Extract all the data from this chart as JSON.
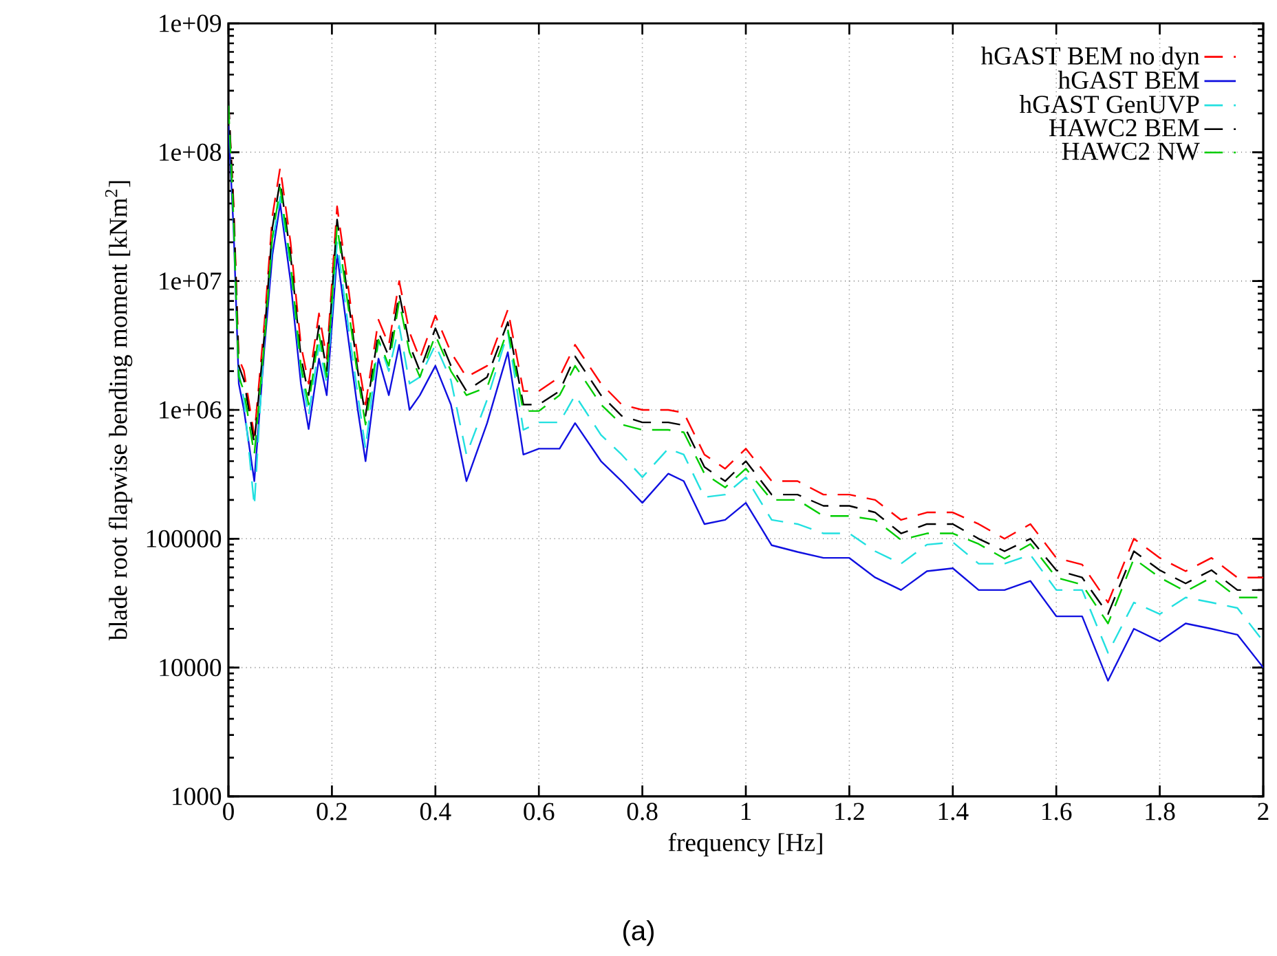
{
  "chart_data": {
    "type": "line",
    "xlabel": "frequency [Hz]",
    "ylabel": "blade root flapwise bending moment [kNm$^{2}$]",
    "annotations": [
      "(a)"
    ],
    "log": "y",
    "grid": true,
    "legend": "top right",
    "marker": "none",
    "xlim": [
      0,
      2
    ],
    "ylim": [
      1000,
      1000000000
    ],
    "xticks": [
      0,
      0.2,
      0.4,
      0.6,
      0.8,
      1,
      1.2,
      1.4,
      1.6,
      1.8,
      2
    ],
    "yticks": [
      1000,
      10000,
      100000,
      {
        "value": 1000000,
        "label": "1e+06"
      },
      {
        "value": 10000000,
        "label": "1e+07"
      },
      {
        "value": 100000000,
        "label": "1e+08"
      },
      {
        "value": 1000000000,
        "label": "1e+09"
      }
    ],
    "x": [
      0,
      0.01,
      0.02,
      0.03,
      0.05,
      0.07,
      0.085,
      0.1,
      0.12,
      0.14,
      0.155,
      0.175,
      0.19,
      0.21,
      0.23,
      0.25,
      0.265,
      0.29,
      0.31,
      0.33,
      0.35,
      0.37,
      0.4,
      0.43,
      0.46,
      0.5,
      0.54,
      0.57,
      0.6,
      0.64,
      0.67,
      0.72,
      0.76,
      0.8,
      0.85,
      0.88,
      0.92,
      0.96,
      1.0,
      1.05,
      1.1,
      1.15,
      1.2,
      1.25,
      1.3,
      1.35,
      1.4,
      1.45,
      1.5,
      1.55,
      1.6,
      1.65,
      1.7,
      1.75,
      1.8,
      1.85,
      1.9,
      1.95,
      2.0
    ],
    "series": [
      {
        "name": "hGAST BEM no dyn",
        "color": "#ff0000",
        "line_style": "dashed",
        "values": [
          250000000.0,
          40000000.0,
          2500000.0,
          2000000.0,
          630000.0,
          5000000.0,
          32000000.0,
          76000000.0,
          20000000.0,
          3200000.0,
          1600000.0,
          5600000.0,
          2500000.0,
          38000000.0,
          10000000.0,
          2500000.0,
          1100000.0,
          5000000.0,
          3200000.0,
          10000000.0,
          4000000.0,
          2500000.0,
          5400000.0,
          2800000.0,
          1800000.0,
          2200000.0,
          6000000.0,
          1400000.0,
          1400000.0,
          1800000.0,
          3200000.0,
          1600000.0,
          1100000.0,
          1000000.0,
          1000000.0,
          950000.0,
          450000.0,
          350000.0,
          500000.0,
          280000.0,
          280000.0,
          220000.0,
          220000.0,
          200000.0,
          140000.0,
          160000.0,
          160000.0,
          130000.0,
          100000.0,
          130000.0,
          71000.0,
          63000.0,
          32000.0,
          100000.0,
          71000.0,
          56000.0,
          71000.0,
          50000.0,
          50000.0
        ]
      },
      {
        "name": "hGAST BEM",
        "color": "#1010e0",
        "line_style": "solid",
        "values": [
          160000000.0,
          25000000.0,
          1600000.0,
          1000000.0,
          280000.0,
          3200000.0,
          16000000.0,
          40000000.0,
          10000000.0,
          1600000.0,
          710000.0,
          2500000.0,
          1300000.0,
          16000000.0,
          4000000.0,
          1000000.0,
          400000.0,
          2500000.0,
          1300000.0,
          3200000.0,
          1000000.0,
          1300000.0,
          2200000.0,
          1100000.0,
          280000.0,
          790000.0,
          2800000.0,
          450000.0,
          500000.0,
          500000.0,
          790000.0,
          400000.0,
          280000.0,
          190000.0,
          320000.0,
          280000.0,
          130000.0,
          140000.0,
          190000.0,
          89000.0,
          79000.0,
          71000.0,
          71000.0,
          50000.0,
          40000.0,
          56000.0,
          59000.0,
          40000.0,
          40000.0,
          47000.0,
          25000.0,
          25000.0,
          7900.0,
          20000.0,
          16000.0,
          22000.0,
          20000.0,
          18000.0,
          10000.0
        ]
      },
      {
        "name": "hGAST GenUVP",
        "color": "#22e0e0",
        "line_style": "dashed",
        "values": [
          250000000.0,
          30000000.0,
          2000000.0,
          1200000.0,
          180000.0,
          4000000.0,
          20000000.0,
          45000000.0,
          13000000.0,
          2000000.0,
          900000.0,
          3200000.0,
          1600000.0,
          20000000.0,
          5000000.0,
          1300000.0,
          500000.0,
          3500000.0,
          2000000.0,
          4500000.0,
          1600000.0,
          1800000.0,
          3200000.0,
          1700000.0,
          450000.0,
          1200000.0,
          4000000.0,
          700000.0,
          800000.0,
          800000.0,
          1300000.0,
          640000.0,
          450000.0,
          300000.0,
          500000.0,
          450000.0,
          210000.0,
          220000.0,
          300000.0,
          140000.0,
          130000.0,
          110000.0,
          110000.0,
          80000.0,
          64000.0,
          90000.0,
          94000.0,
          64000.0,
          64000.0,
          75000.0,
          40000.0,
          40000.0,
          13000.0,
          32000.0,
          26000.0,
          35000.0,
          32000.0,
          29000.0,
          16000.0
        ]
      },
      {
        "name": "HAWC2 BEM",
        "color": "#000000",
        "line_style": "dashed",
        "values": [
          250000000.0,
          35000000.0,
          2200000.0,
          1700000.0,
          550000.0,
          4000000.0,
          26000000.0,
          60000000.0,
          16000000.0,
          2600000.0,
          1300000.0,
          4500000.0,
          2000000.0,
          30000000.0,
          8000000.0,
          2000000.0,
          900000.0,
          4000000.0,
          2600000.0,
          8000000.0,
          3200000.0,
          2000000.0,
          4300000.0,
          2200000.0,
          1400000.0,
          1800000.0,
          4800000.0,
          1100000.0,
          1100000.0,
          1400000.0,
          2600000.0,
          1300000.0,
          900000.0,
          800000.0,
          800000.0,
          760000.0,
          360000.0,
          280000.0,
          400000.0,
          220000.0,
          220000.0,
          180000.0,
          180000.0,
          160000.0,
          110000.0,
          130000.0,
          130000.0,
          100000.0,
          80000.0,
          100000.0,
          57000.0,
          50000.0,
          26000.0,
          80000.0,
          57000.0,
          45000.0,
          57000.0,
          40000.0,
          40000.0
        ]
      },
      {
        "name": "HAWC2 NW",
        "color": "#00cc00",
        "line_style": "dashed",
        "values": [
          230000000.0,
          30000000.0,
          1800000.0,
          1400000.0,
          450000.0,
          3500000.0,
          22000000.0,
          53000000.0,
          14000000.0,
          2200000.0,
          1100000.0,
          3900000.0,
          1800000.0,
          27000000.0,
          7000000.0,
          1800000.0,
          770000.0,
          3500000.0,
          2200000.0,
          7000000.0,
          2800000.0,
          1800000.0,
          3800000.0,
          2000000.0,
          1300000.0,
          1500000.0,
          4200000.0,
          980000.0,
          980000.0,
          1300000.0,
          2200000.0,
          1100000.0,
          770000.0,
          700000.0,
          700000.0,
          670000.0,
          320000.0,
          250000.0,
          350000.0,
          200000.0,
          200000.0,
          150000.0,
          150000.0,
          140000.0,
          98000.0,
          110000.0,
          110000.0,
          91000.0,
          70000.0,
          91000.0,
          50000.0,
          44000.0,
          22000.0,
          70000.0,
          50000.0,
          39000.0,
          50000.0,
          35000.0,
          35000.0
        ]
      }
    ]
  }
}
